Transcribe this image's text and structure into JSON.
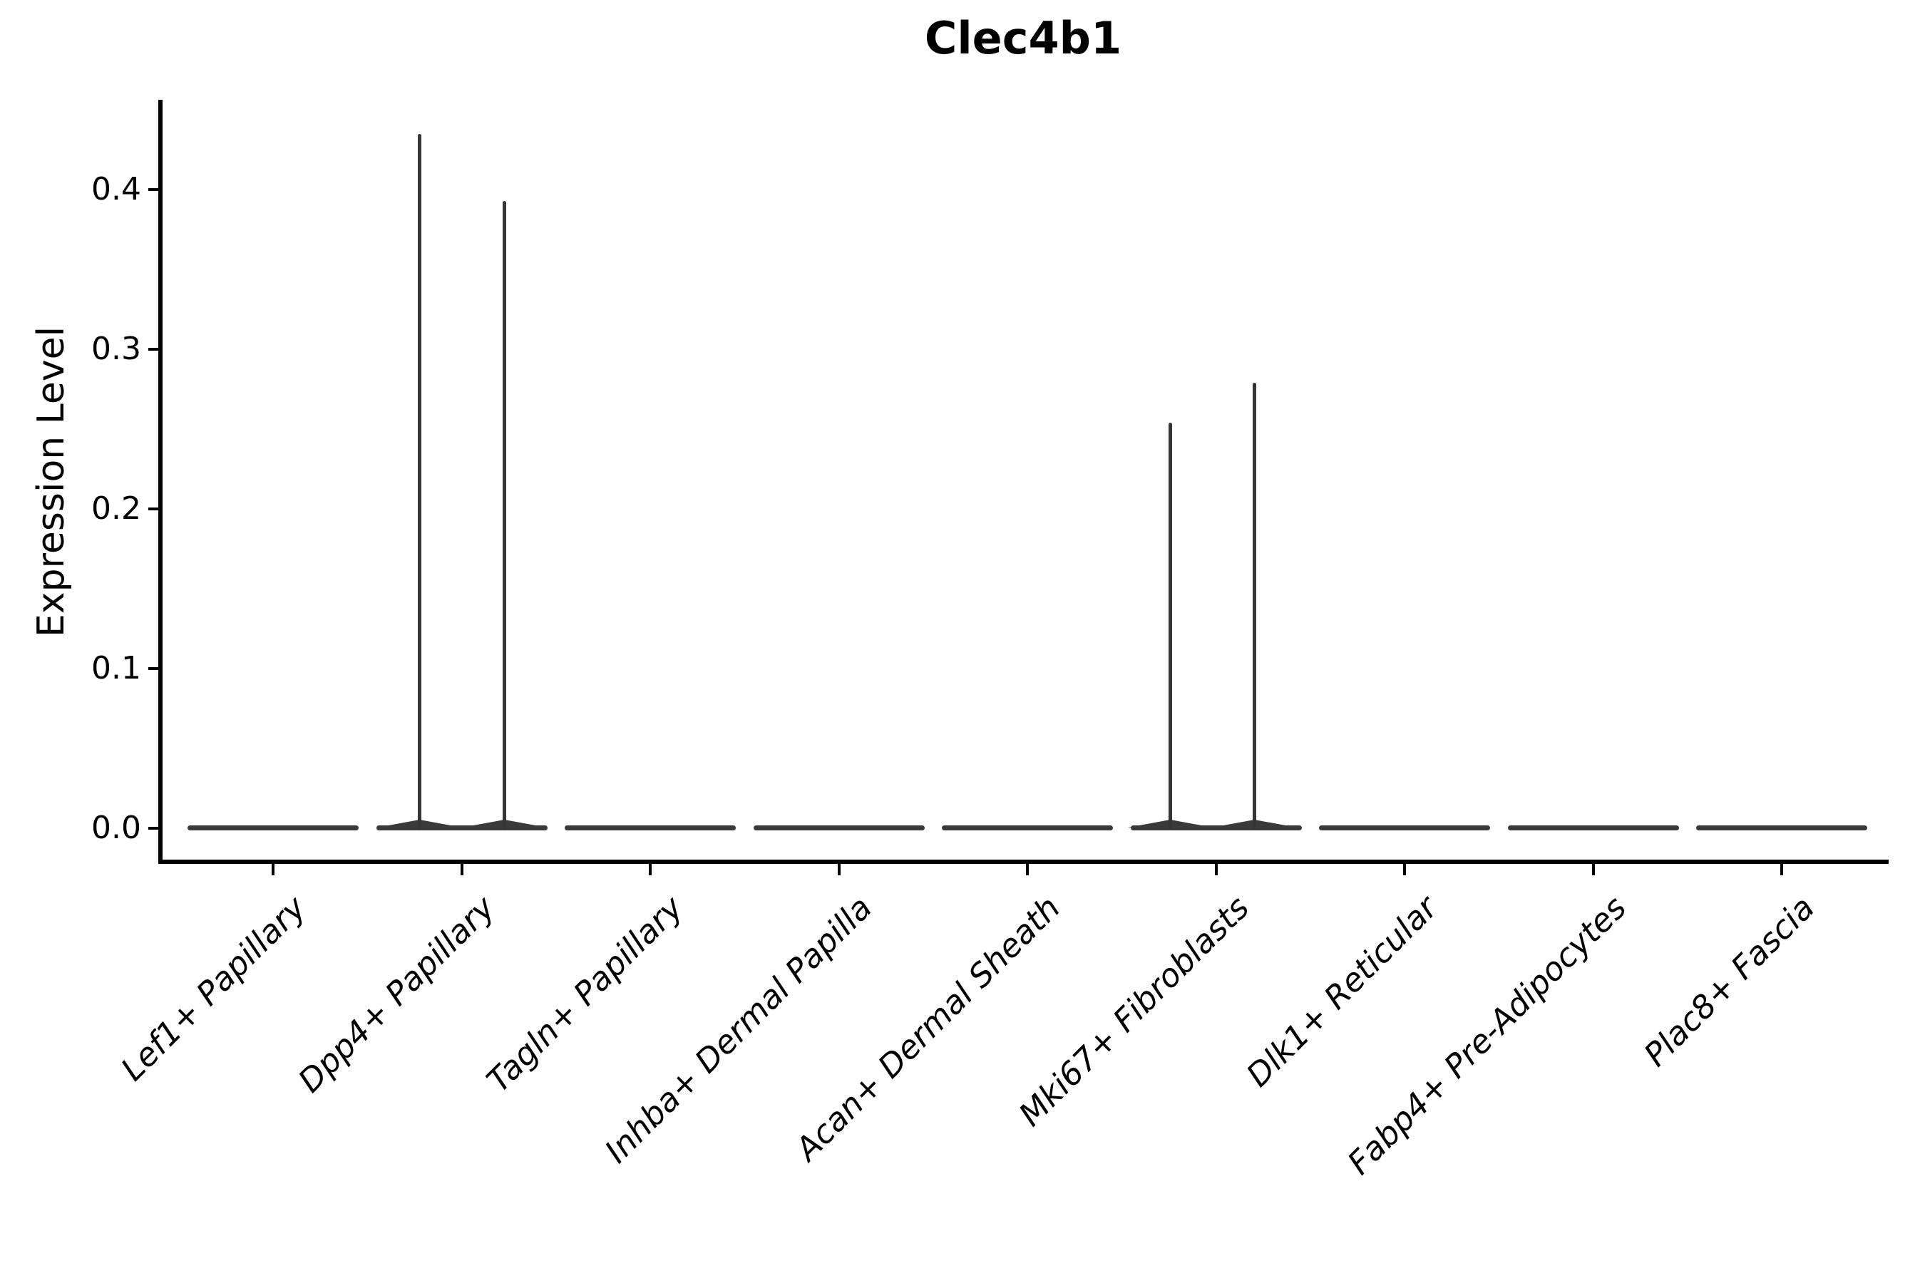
{
  "chart_data": {
    "type": "violin",
    "title": "Clec4b1",
    "xlabel": "",
    "ylabel": "Expression Level",
    "ylim": [
      0,
      0.456
    ],
    "y_ticks": [
      0.0,
      0.1,
      0.2,
      0.3,
      0.4
    ],
    "y_tick_labels": [
      "0.0",
      "0.1",
      "0.2",
      "0.3",
      "0.4"
    ],
    "grid": false,
    "legend_position": "none",
    "violin_fill_color": "#3a3a3a",
    "axis_color": "#000000",
    "background_color": "#ffffff",
    "categories": [
      "Lef1+ Papillary",
      "Dpp4+ Papillary",
      "Tagln+ Papillary",
      "Inhba+ Dermal Papilla",
      "Acan+ Dermal Sheath",
      "Mki67+ Fibroblasts",
      "Dlk1+ Reticular",
      "Fabp4+ Pre-Adipocytes",
      "Plac8+ Fascia"
    ],
    "violins": [
      {
        "category": "Lef1+ Papillary",
        "baseline_value": 0.0,
        "spikes": []
      },
      {
        "category": "Dpp4+ Papillary",
        "baseline_value": 0.0,
        "spikes": [
          {
            "offset": -59,
            "value": 0.435
          },
          {
            "offset": 60,
            "value": 0.393
          }
        ]
      },
      {
        "category": "Tagln+ Papillary",
        "baseline_value": 0.0,
        "spikes": []
      },
      {
        "category": "Inhba+ Dermal Papilla",
        "baseline_value": 0.0,
        "spikes": []
      },
      {
        "category": "Acan+ Dermal Sheath",
        "baseline_value": 0.0,
        "spikes": []
      },
      {
        "category": "Mki67+ Fibroblasts",
        "baseline_value": 0.0,
        "spikes": [
          {
            "offset": -64,
            "value": 0.254
          },
          {
            "offset": 54,
            "value": 0.279
          }
        ]
      },
      {
        "category": "Dlk1+ Reticular",
        "baseline_value": 0.0,
        "spikes": []
      },
      {
        "category": "Fabp4+ Pre-Adipocytes",
        "baseline_value": 0.0,
        "spikes": []
      },
      {
        "category": "Plac8+ Fascia",
        "baseline_value": 0.0,
        "spikes": []
      }
    ]
  }
}
